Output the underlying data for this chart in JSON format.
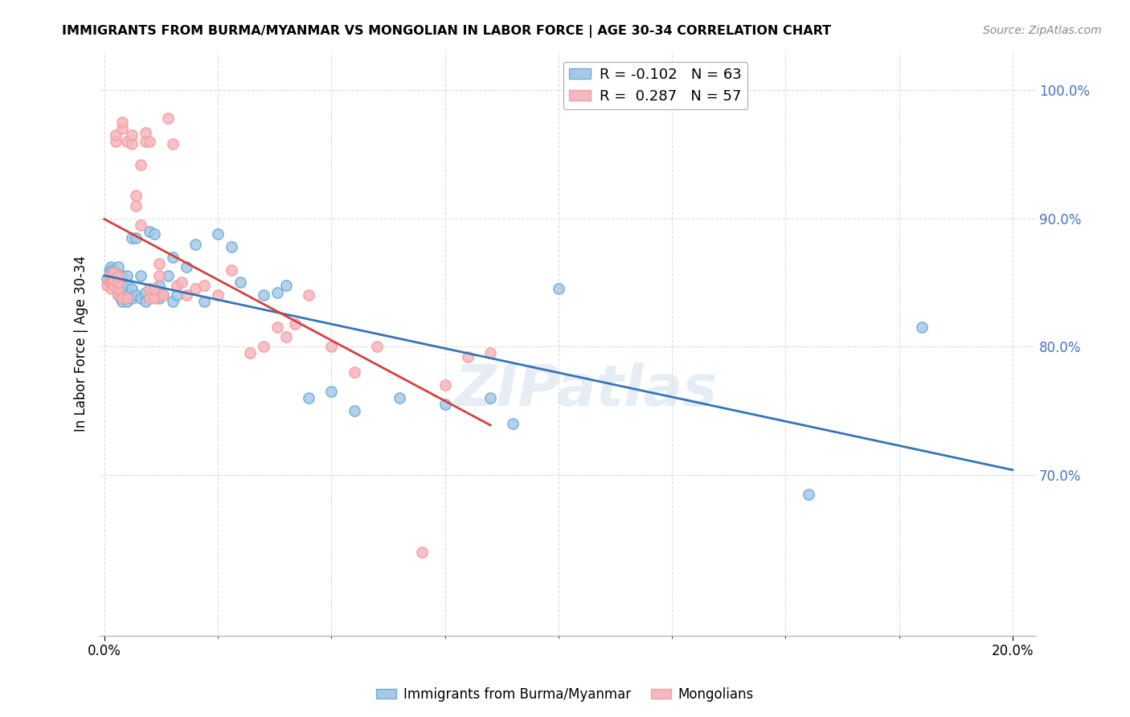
{
  "title": "IMMIGRANTS FROM BURMA/MYANMAR VS MONGOLIAN IN LABOR FORCE | AGE 30-34 CORRELATION CHART",
  "source": "Source: ZipAtlas.com",
  "ylabel": "In Labor Force | Age 30-34",
  "ylim": [
    0.575,
    1.03
  ],
  "xlim": [
    -0.001,
    0.205
  ],
  "blue_R": "-0.102",
  "blue_N": "63",
  "pink_R": "0.287",
  "pink_N": "57",
  "legend_label_blue": "Immigrants from Burma/Myanmar",
  "legend_label_pink": "Mongolians",
  "blue_color": "#a8c8e8",
  "pink_color": "#f4b8c0",
  "blue_edge_color": "#6baed6",
  "pink_edge_color": "#fb9a99",
  "blue_line_color": "#3575b5",
  "pink_line_color": "#d44040",
  "background_color": "#ffffff",
  "grid_color": "#dddddd",
  "watermark": "ZIPatlas",
  "ytick_vals": [
    0.7,
    0.8,
    0.9,
    1.0
  ],
  "ytick_labels": [
    "70.0%",
    "80.0%",
    "90.0%",
    "100.0%"
  ],
  "blue_x": [
    0.0005,
    0.001,
    0.001,
    0.0015,
    0.0015,
    0.002,
    0.002,
    0.0025,
    0.0025,
    0.003,
    0.003,
    0.003,
    0.003,
    0.0035,
    0.0035,
    0.0035,
    0.004,
    0.004,
    0.004,
    0.004,
    0.005,
    0.005,
    0.005,
    0.005,
    0.006,
    0.006,
    0.006,
    0.007,
    0.007,
    0.008,
    0.008,
    0.009,
    0.009,
    0.01,
    0.01,
    0.011,
    0.011,
    0.012,
    0.012,
    0.013,
    0.014,
    0.015,
    0.015,
    0.016,
    0.018,
    0.02,
    0.022,
    0.025,
    0.028,
    0.03,
    0.035,
    0.038,
    0.04,
    0.045,
    0.05,
    0.055,
    0.065,
    0.075,
    0.085,
    0.09,
    0.1,
    0.155,
    0.18
  ],
  "blue_y": [
    0.853,
    0.855,
    0.86,
    0.858,
    0.862,
    0.852,
    0.86,
    0.85,
    0.858,
    0.84,
    0.848,
    0.855,
    0.862,
    0.838,
    0.845,
    0.852,
    0.835,
    0.842,
    0.848,
    0.855,
    0.835,
    0.842,
    0.848,
    0.855,
    0.838,
    0.845,
    0.885,
    0.84,
    0.885,
    0.838,
    0.855,
    0.835,
    0.842,
    0.838,
    0.89,
    0.84,
    0.888,
    0.838,
    0.848,
    0.84,
    0.855,
    0.835,
    0.87,
    0.84,
    0.862,
    0.88,
    0.835,
    0.888,
    0.878,
    0.85,
    0.84,
    0.842,
    0.848,
    0.76,
    0.765,
    0.75,
    0.76,
    0.755,
    0.76,
    0.74,
    0.845,
    0.685,
    0.815
  ],
  "pink_x": [
    0.0005,
    0.001,
    0.001,
    0.0015,
    0.0015,
    0.002,
    0.002,
    0.002,
    0.0025,
    0.0025,
    0.003,
    0.003,
    0.003,
    0.003,
    0.004,
    0.004,
    0.004,
    0.005,
    0.005,
    0.006,
    0.006,
    0.007,
    0.007,
    0.008,
    0.008,
    0.009,
    0.009,
    0.01,
    0.01,
    0.01,
    0.011,
    0.011,
    0.012,
    0.012,
    0.013,
    0.014,
    0.015,
    0.016,
    0.017,
    0.018,
    0.02,
    0.022,
    0.025,
    0.028,
    0.032,
    0.035,
    0.038,
    0.04,
    0.042,
    0.045,
    0.05,
    0.055,
    0.06,
    0.07,
    0.075,
    0.08,
    0.085
  ],
  "pink_y": [
    0.848,
    0.85,
    0.855,
    0.845,
    0.85,
    0.848,
    0.852,
    0.858,
    0.96,
    0.965,
    0.84,
    0.845,
    0.85,
    0.855,
    0.838,
    0.97,
    0.975,
    0.838,
    0.96,
    0.958,
    0.965,
    0.91,
    0.918,
    0.942,
    0.895,
    0.96,
    0.967,
    0.838,
    0.845,
    0.96,
    0.838,
    0.845,
    0.855,
    0.865,
    0.84,
    0.978,
    0.958,
    0.848,
    0.85,
    0.84,
    0.845,
    0.848,
    0.84,
    0.86,
    0.795,
    0.8,
    0.815,
    0.808,
    0.818,
    0.84,
    0.8,
    0.78,
    0.8,
    0.64,
    0.77,
    0.792,
    0.795
  ]
}
